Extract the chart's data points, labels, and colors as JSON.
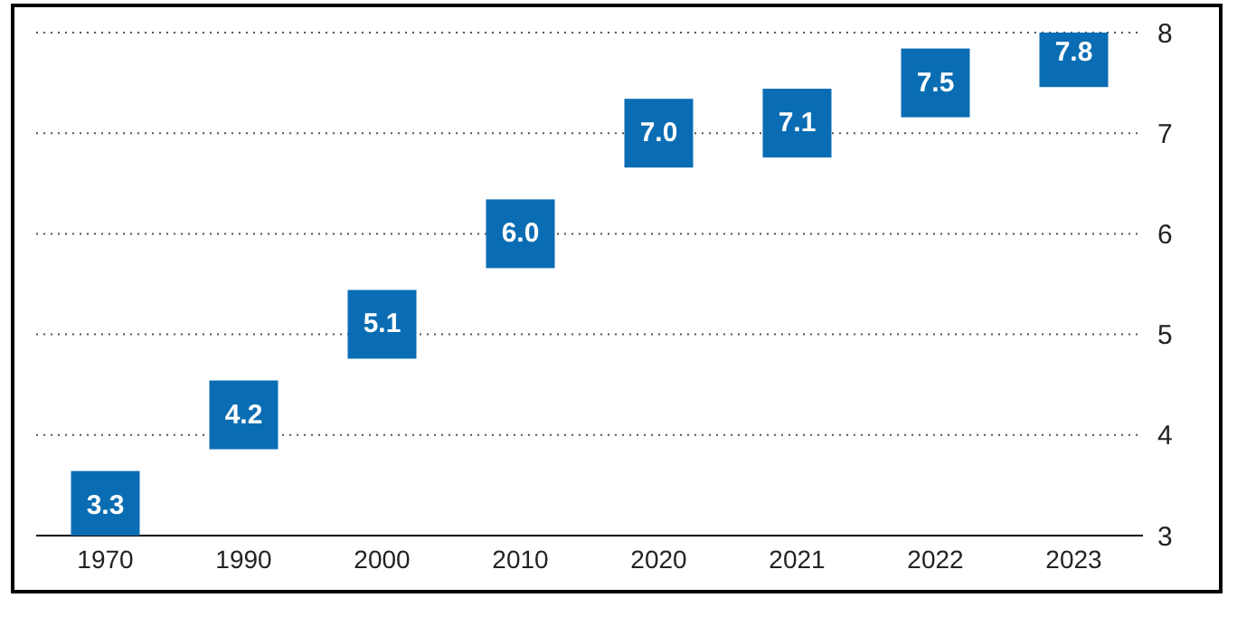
{
  "chart_data": {
    "type": "scatter",
    "categories": [
      "1970",
      "1990",
      "2000",
      "2010",
      "2020",
      "2021",
      "2022",
      "2023"
    ],
    "series": [
      {
        "color": "#0a6db3",
        "values": [
          3.3,
          4.2,
          5.1,
          6.0,
          7.0,
          7.1,
          7.5,
          7.8
        ],
        "value_labels": [
          "3.3",
          "4.2",
          "5.1",
          "6.0",
          "7.0",
          "7.1",
          "7.5",
          "7.8"
        ]
      }
    ],
    "ylim": [
      3,
      8
    ],
    "yticks": [
      3,
      4,
      5,
      6,
      7,
      8
    ],
    "grid": "y",
    "marker": "square",
    "legend": false
  }
}
